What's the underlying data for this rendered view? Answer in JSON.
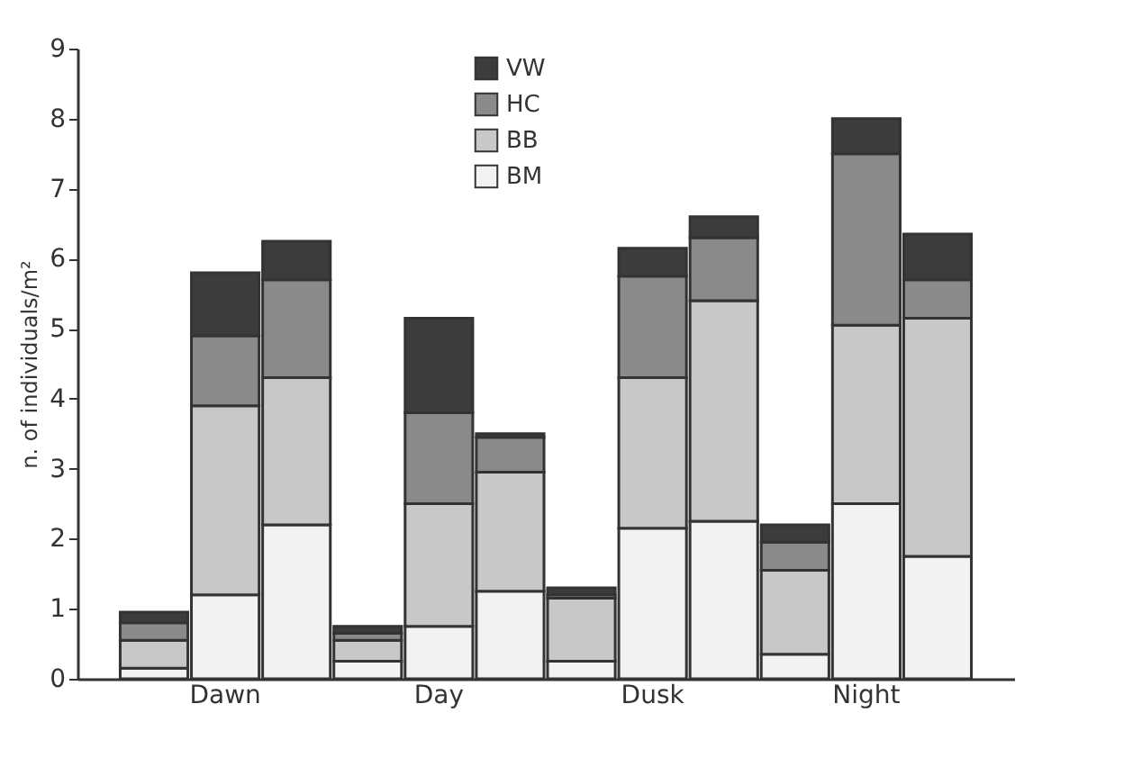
{
  "chart_data": {
    "type": "bar",
    "stacked": true,
    "ylabel": "n. of individuals/m²",
    "categories": [
      null,
      "Dawn",
      null,
      null,
      "Day",
      null,
      null,
      "Dusk",
      null,
      null,
      "Night",
      null
    ],
    "ylim": [
      0,
      9
    ],
    "yticks": [
      0,
      1,
      2,
      3,
      4,
      5,
      6,
      7,
      8,
      9
    ],
    "grid": false,
    "legend": "top",
    "series": [
      {
        "name": "BM",
        "color": "#f2f2f2",
        "values": [
          0.15,
          1.2,
          2.2,
          0.25,
          0.75,
          1.25,
          0.25,
          2.15,
          2.25,
          0.35,
          2.5,
          1.75
        ]
      },
      {
        "name": "BB",
        "color": "#c8c8c8",
        "values": [
          0.4,
          2.7,
          2.1,
          0.3,
          1.75,
          1.7,
          0.9,
          2.15,
          3.15,
          1.2,
          2.55,
          3.4
        ]
      },
      {
        "name": "HC",
        "color": "#8a8a8a",
        "values": [
          0.25,
          1.0,
          1.4,
          0.1,
          1.3,
          0.5,
          0.05,
          1.45,
          0.9,
          0.4,
          2.45,
          0.55
        ]
      },
      {
        "name": "VW",
        "color": "#3c3c3c",
        "values": [
          0.15,
          0.9,
          0.55,
          0.1,
          1.35,
          0.05,
          0.1,
          0.4,
          0.3,
          0.25,
          0.5,
          0.65
        ]
      }
    ]
  }
}
